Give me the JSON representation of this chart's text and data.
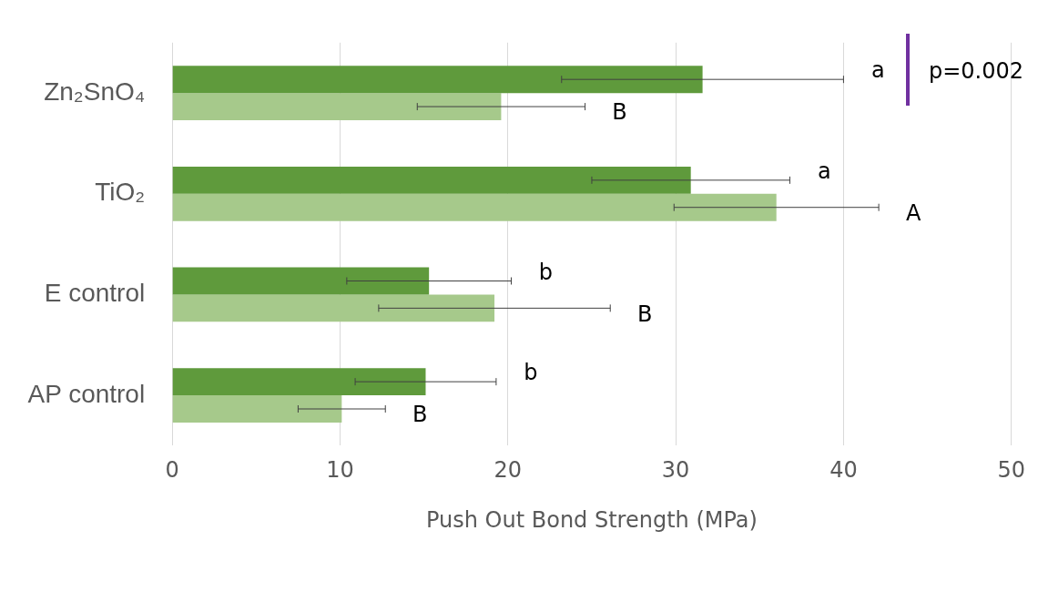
{
  "chart_data": {
    "type": "bar",
    "orientation": "horizontal",
    "xlabel": "Push Out Bond Strength (MPa)",
    "categories": [
      "Zn₂SnO₄",
      "TiO₂",
      "E control",
      "AP control"
    ],
    "series": [
      {
        "color": "#5f9a3c",
        "values": [
          31.6,
          30.9,
          15.3,
          15.1
        ],
        "errors": [
          8.4,
          5.9,
          4.9,
          4.2
        ]
      },
      {
        "color": "#a6c98b",
        "values": [
          19.6,
          36.0,
          19.2,
          10.1
        ],
        "errors": [
          5.0,
          6.1,
          6.9,
          2.6
        ]
      }
    ],
    "xlim": [
      0,
      50
    ],
    "xticks": [
      0,
      10,
      20,
      30,
      40,
      50
    ],
    "grid": "x",
    "legend": false,
    "annotations": [
      "a",
      "B",
      "a",
      "A",
      "b",
      "B",
      "b",
      "B",
      "p=0.002"
    ]
  }
}
